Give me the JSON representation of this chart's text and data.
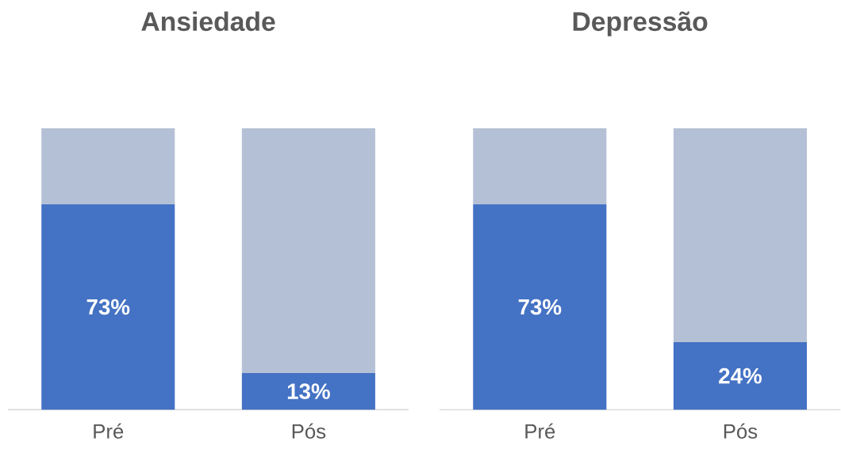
{
  "chart_data": [
    {
      "type": "bar",
      "title": "Ansiedade",
      "categories": [
        "Pré",
        "Pós"
      ],
      "stacked": true,
      "series": [
        {
          "color": "#4472c4",
          "values": [
            73,
            13
          ],
          "value_labels": [
            "73%",
            "13%"
          ]
        },
        {
          "color": "#b4c0d5",
          "values": [
            27,
            87
          ]
        }
      ]
    },
    {
      "type": "bar",
      "title": "Depressão",
      "categories": [
        "Pré",
        "Pós"
      ],
      "stacked": true,
      "series": [
        {
          "color": "#4472c4",
          "values": [
            73,
            24
          ],
          "value_labels": [
            "73%",
            "24%"
          ]
        },
        {
          "color": "#b4c0d5",
          "values": [
            27,
            76
          ]
        }
      ]
    }
  ]
}
